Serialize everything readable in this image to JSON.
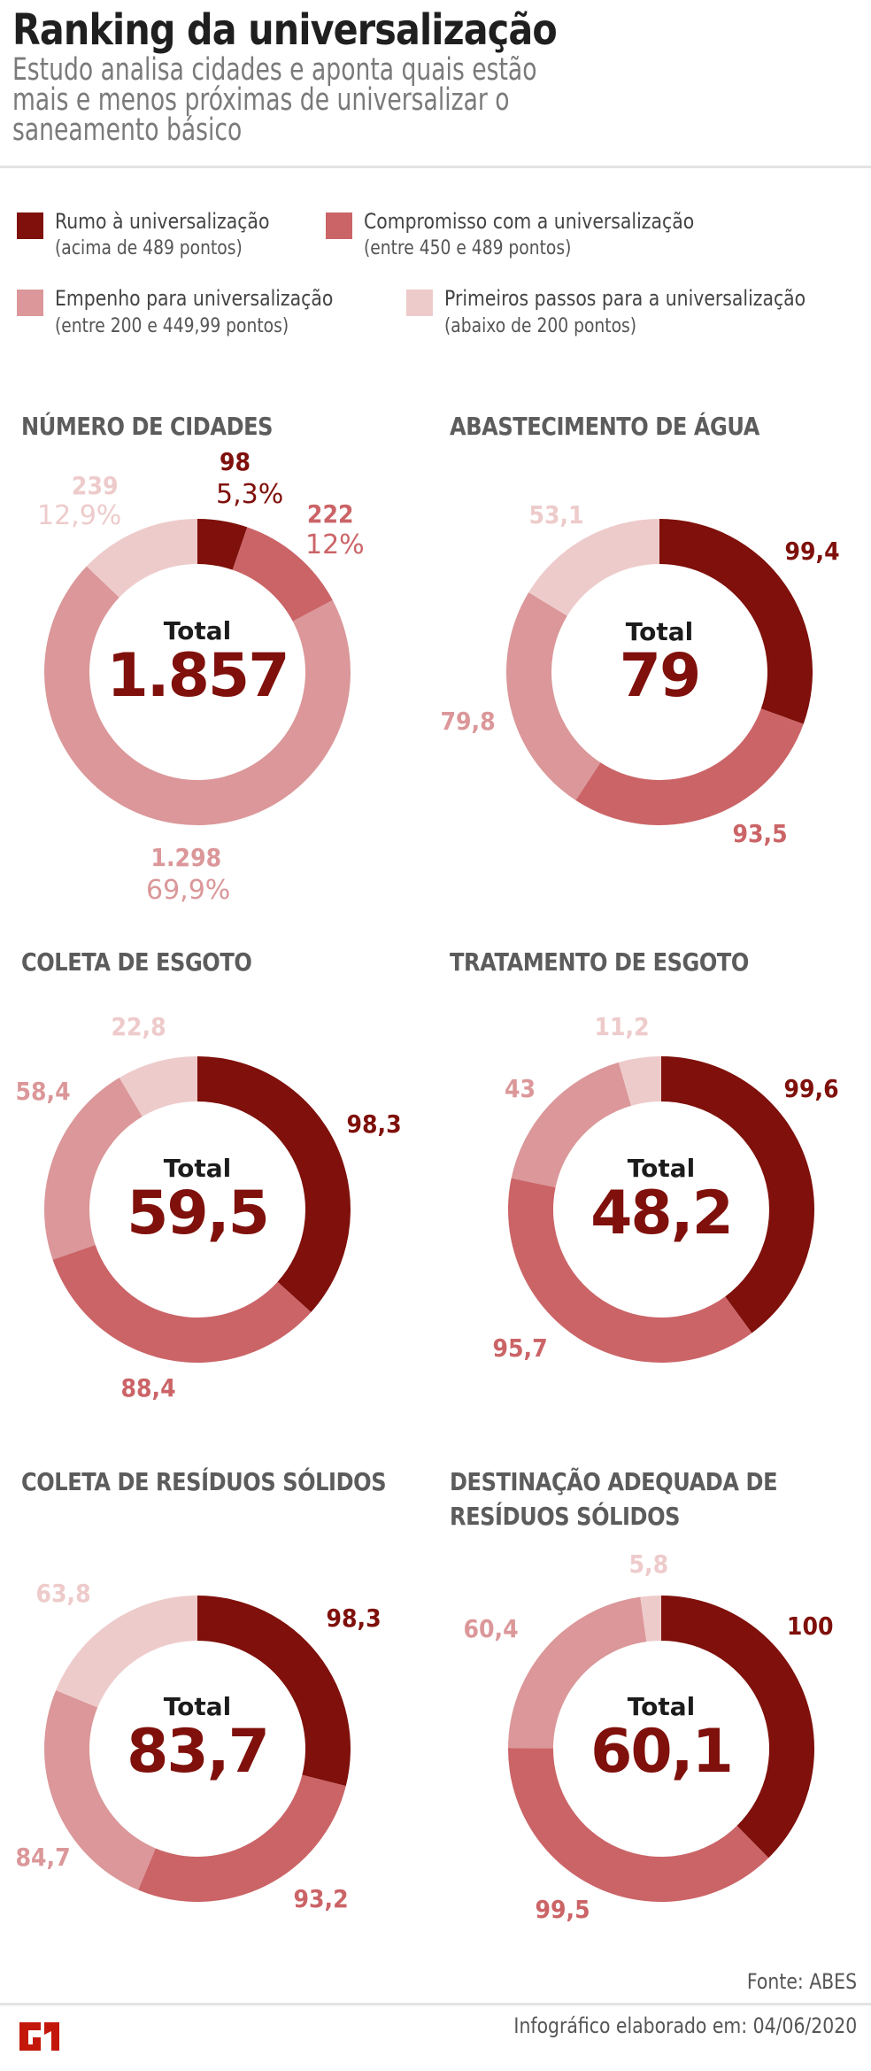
{
  "header": {
    "title": "Ranking da universalização",
    "subtitle_lines": [
      "Estudo analisa cidades e aponta quais estão",
      "mais e menos próximas de universalizar o",
      "saneamento básico"
    ]
  },
  "colors": {
    "rumo": "#7f100b",
    "compromisso": "#cb6467",
    "empenho": "#db9799",
    "primeiros_passos": "#eecbcb"
  },
  "legend": [
    {
      "label": "Rumo à universalização",
      "range": "(acima de 489 pontos)",
      "color": "#7f100b"
    },
    {
      "label": "Compromisso com a universalização",
      "range": "(entre 450 e 489 pontos)",
      "color": "#cb6467"
    },
    {
      "label": "Empenho para universalização",
      "range": "(entre 200 e 449,99 pontos)",
      "color": "#db9799"
    },
    {
      "label": "Primeiros passos para a universalização",
      "range": "(abaixo de 200 pontos)",
      "color": "#eecbcb"
    }
  ],
  "total_label": "Total",
  "charts": [
    {
      "title": "NÚMERO DE CIDADES",
      "total": "1.857",
      "labels": {
        "rumo": "98",
        "rumo_pct": "5,3%",
        "compromisso": "222",
        "compromisso_pct": "12%",
        "empenho": "1.298",
        "empenho_pct": "69,9%",
        "primeiros": "239",
        "primeiros_pct": "12,9%"
      }
    },
    {
      "title": "ABASTECIMENTO DE ÁGUA",
      "total": "79",
      "labels": {
        "rumo": "99,4",
        "compromisso": "93,5",
        "empenho": "79,8",
        "primeiros": "53,1"
      }
    },
    {
      "title": "COLETA DE ESGOTO",
      "total": "59,5",
      "labels": {
        "rumo": "98,3",
        "compromisso": "88,4",
        "empenho": "58,4",
        "primeiros": "22,8"
      }
    },
    {
      "title": "TRATAMENTO DE ESGOTO",
      "total": "48,2",
      "labels": {
        "rumo": "99,6",
        "compromisso": "95,7",
        "empenho": "43",
        "primeiros": "11,2"
      }
    },
    {
      "title": "COLETA DE RESÍDUOS SÓLIDOS",
      "total": "83,7",
      "labels": {
        "rumo": "98,3",
        "compromisso": "93,2",
        "empenho": "84,7",
        "primeiros": "63,8"
      }
    },
    {
      "title_lines": [
        "DESTINAÇÃO ADEQUADA DE",
        "RESÍDUOS SÓLIDOS"
      ],
      "total": "60,1",
      "labels": {
        "rumo": "100",
        "compromisso": "99,5",
        "empenho": "60,4",
        "primeiros": "5,8"
      }
    }
  ],
  "footer": {
    "source": "Fonte: ABES",
    "date_line": "Infográfico elaborado em: 04/06/2020",
    "logo": "G1"
  },
  "chart_data": [
    {
      "type": "pie",
      "title": "NÚMERO DE CIDADES",
      "center_text": "Total 1.857",
      "categories": [
        "Rumo à universalização",
        "Compromisso com a universalização",
        "Empenho para universalização",
        "Primeiros passos para a universalização"
      ],
      "values": [
        98,
        222,
        1298,
        239
      ],
      "percent": [
        5.3,
        12,
        69.9,
        12.9
      ],
      "total": 1857
    },
    {
      "type": "pie",
      "title": "ABASTECIMENTO DE ÁGUA",
      "center_text": "Total 79",
      "categories": [
        "Rumo à universalização",
        "Compromisso com a universalização",
        "Empenho para universalização",
        "Primeiros passos para a universalização"
      ],
      "values": [
        99.4,
        93.5,
        79.8,
        53.1
      ],
      "total": 79
    },
    {
      "type": "pie",
      "title": "COLETA DE ESGOTO",
      "center_text": "Total 59,5",
      "categories": [
        "Rumo à universalização",
        "Compromisso com a universalização",
        "Empenho para universalização",
        "Primeiros passos para a universalização"
      ],
      "values": [
        98.3,
        88.4,
        58.4,
        22.8
      ],
      "total": 59.5
    },
    {
      "type": "pie",
      "title": "TRATAMENTO DE ESGOTO",
      "center_text": "Total 48,2",
      "categories": [
        "Rumo à universalização",
        "Compromisso com a universalização",
        "Empenho para universalização",
        "Primeiros passos para a universalização"
      ],
      "values": [
        99.6,
        95.7,
        43,
        11.2
      ],
      "total": 48.2
    },
    {
      "type": "pie",
      "title": "COLETA DE RESÍDUOS SÓLIDOS",
      "center_text": "Total 83,7",
      "categories": [
        "Rumo à universalização",
        "Compromisso com a universalização",
        "Empenho para universalização",
        "Primeiros passos para a universalização"
      ],
      "values": [
        98.3,
        93.2,
        84.7,
        63.8
      ],
      "total": 83.7
    },
    {
      "type": "pie",
      "title": "DESTINAÇÃO ADEQUADA DE RESÍDUOS SÓLIDOS",
      "center_text": "Total 60,1",
      "categories": [
        "Rumo à universalização",
        "Compromisso com a universalização",
        "Empenho para universalização",
        "Primeiros passos para a universalização"
      ],
      "values": [
        100,
        99.5,
        60.4,
        5.8
      ],
      "total": 60.1
    }
  ]
}
